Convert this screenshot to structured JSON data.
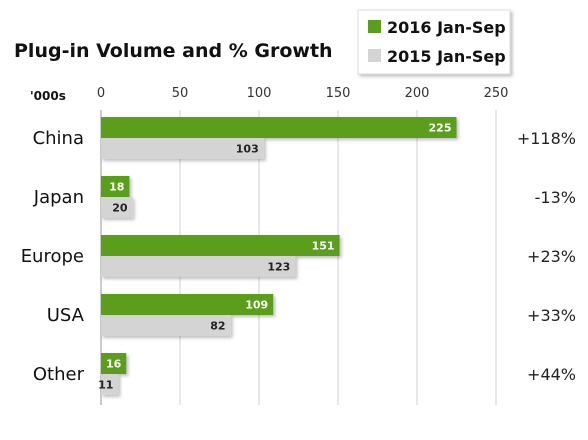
{
  "chart_data": {
    "type": "bar",
    "orientation": "horizontal",
    "title": "Plug-in Volume and % Growth",
    "unit_label": "'000s",
    "xlim": [
      0,
      250
    ],
    "xticks": [
      0,
      50,
      100,
      150,
      200,
      250
    ],
    "grid": true,
    "legend_position": "top-right",
    "categories": [
      "China",
      "Japan",
      "Europe",
      "USA",
      "Other"
    ],
    "series": [
      {
        "name": "2016 Jan-Sep",
        "color": "#5a9e1e",
        "label_color": "#ffffff",
        "values": [
          225,
          18,
          151,
          109,
          16
        ]
      },
      {
        "name": "2015 Jan-Sep",
        "color": "#d4d4d4",
        "label_color": "#222222",
        "values": [
          103,
          20,
          123,
          82,
          11
        ]
      }
    ],
    "growth": [
      "+118%",
      "-13%",
      "+23%",
      "+33%",
      "+44%"
    ],
    "growth_colors": [
      "#222222",
      "#d9534f",
      "#222222",
      "#222222",
      "#222222"
    ]
  }
}
